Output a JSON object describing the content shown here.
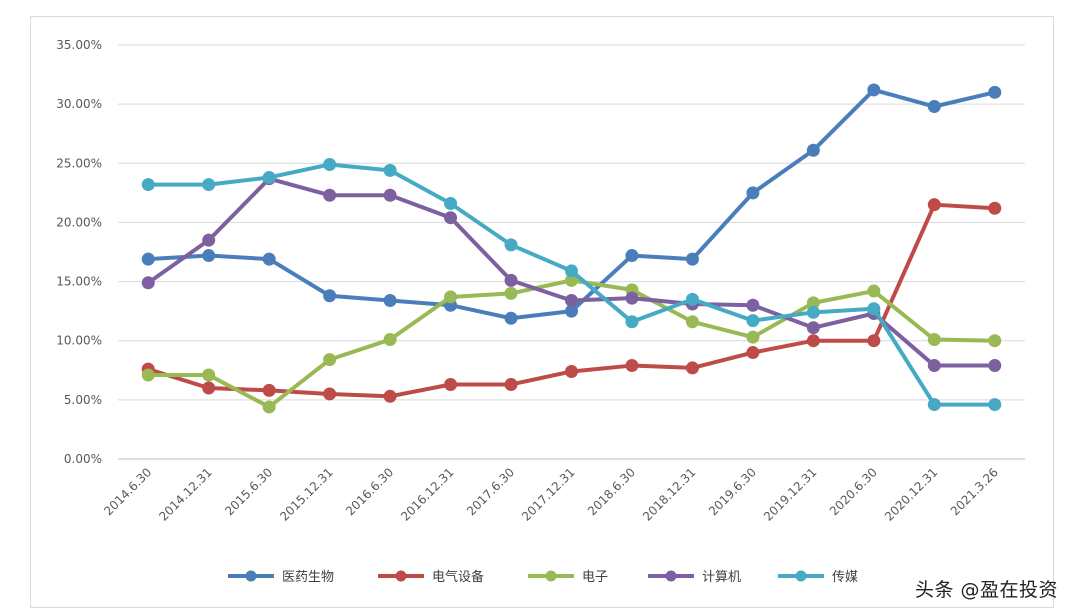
{
  "chart_data": {
    "type": "line",
    "categories": [
      "2014.6.30",
      "2014.12.31",
      "2015.6.30",
      "2015.12.31",
      "2016.6.30",
      "2016.12.31",
      "2017.6.30",
      "2017.12.31",
      "2018.6.30",
      "2018.12.31",
      "2019.6.30",
      "2019.12.31",
      "2020.6.30",
      "2020.12.31",
      "2021.3.26"
    ],
    "ylim": [
      0,
      35
    ],
    "yticks": [
      "0.00%",
      "5.00%",
      "10.00%",
      "15.00%",
      "20.00%",
      "25.00%",
      "30.00%",
      "35.00%"
    ],
    "grid": true,
    "legend_position": "bottom",
    "series": [
      {
        "name": "医药生物",
        "color": "#4a7ebb",
        "values": [
          16.9,
          17.2,
          16.9,
          13.8,
          13.4,
          13.0,
          11.9,
          12.5,
          17.2,
          16.9,
          22.5,
          26.1,
          31.2,
          29.8,
          31.0
        ]
      },
      {
        "name": "电气设备",
        "color": "#be4b48",
        "values": [
          7.6,
          6.0,
          5.8,
          5.5,
          5.3,
          6.3,
          6.3,
          7.4,
          7.9,
          7.7,
          9.0,
          10.0,
          10.0,
          21.5,
          21.2
        ]
      },
      {
        "name": "电子",
        "color": "#98b954",
        "values": [
          7.1,
          7.1,
          4.4,
          8.4,
          10.1,
          13.7,
          14.0,
          15.1,
          14.3,
          11.6,
          10.3,
          13.2,
          14.2,
          10.1,
          10.0
        ]
      },
      {
        "name": "计算机",
        "color": "#7d60a0",
        "values": [
          14.9,
          18.5,
          23.7,
          22.3,
          22.3,
          20.4,
          15.1,
          13.4,
          13.6,
          13.1,
          13.0,
          11.1,
          12.3,
          7.9,
          7.9
        ]
      },
      {
        "name": "传媒",
        "color": "#46aac5",
        "values": [
          23.2,
          23.2,
          23.8,
          24.9,
          24.4,
          21.6,
          18.1,
          15.9,
          11.6,
          13.5,
          11.7,
          12.4,
          12.7,
          4.6,
          4.6
        ]
      }
    ]
  },
  "watermark": "头条 @盈在投资"
}
